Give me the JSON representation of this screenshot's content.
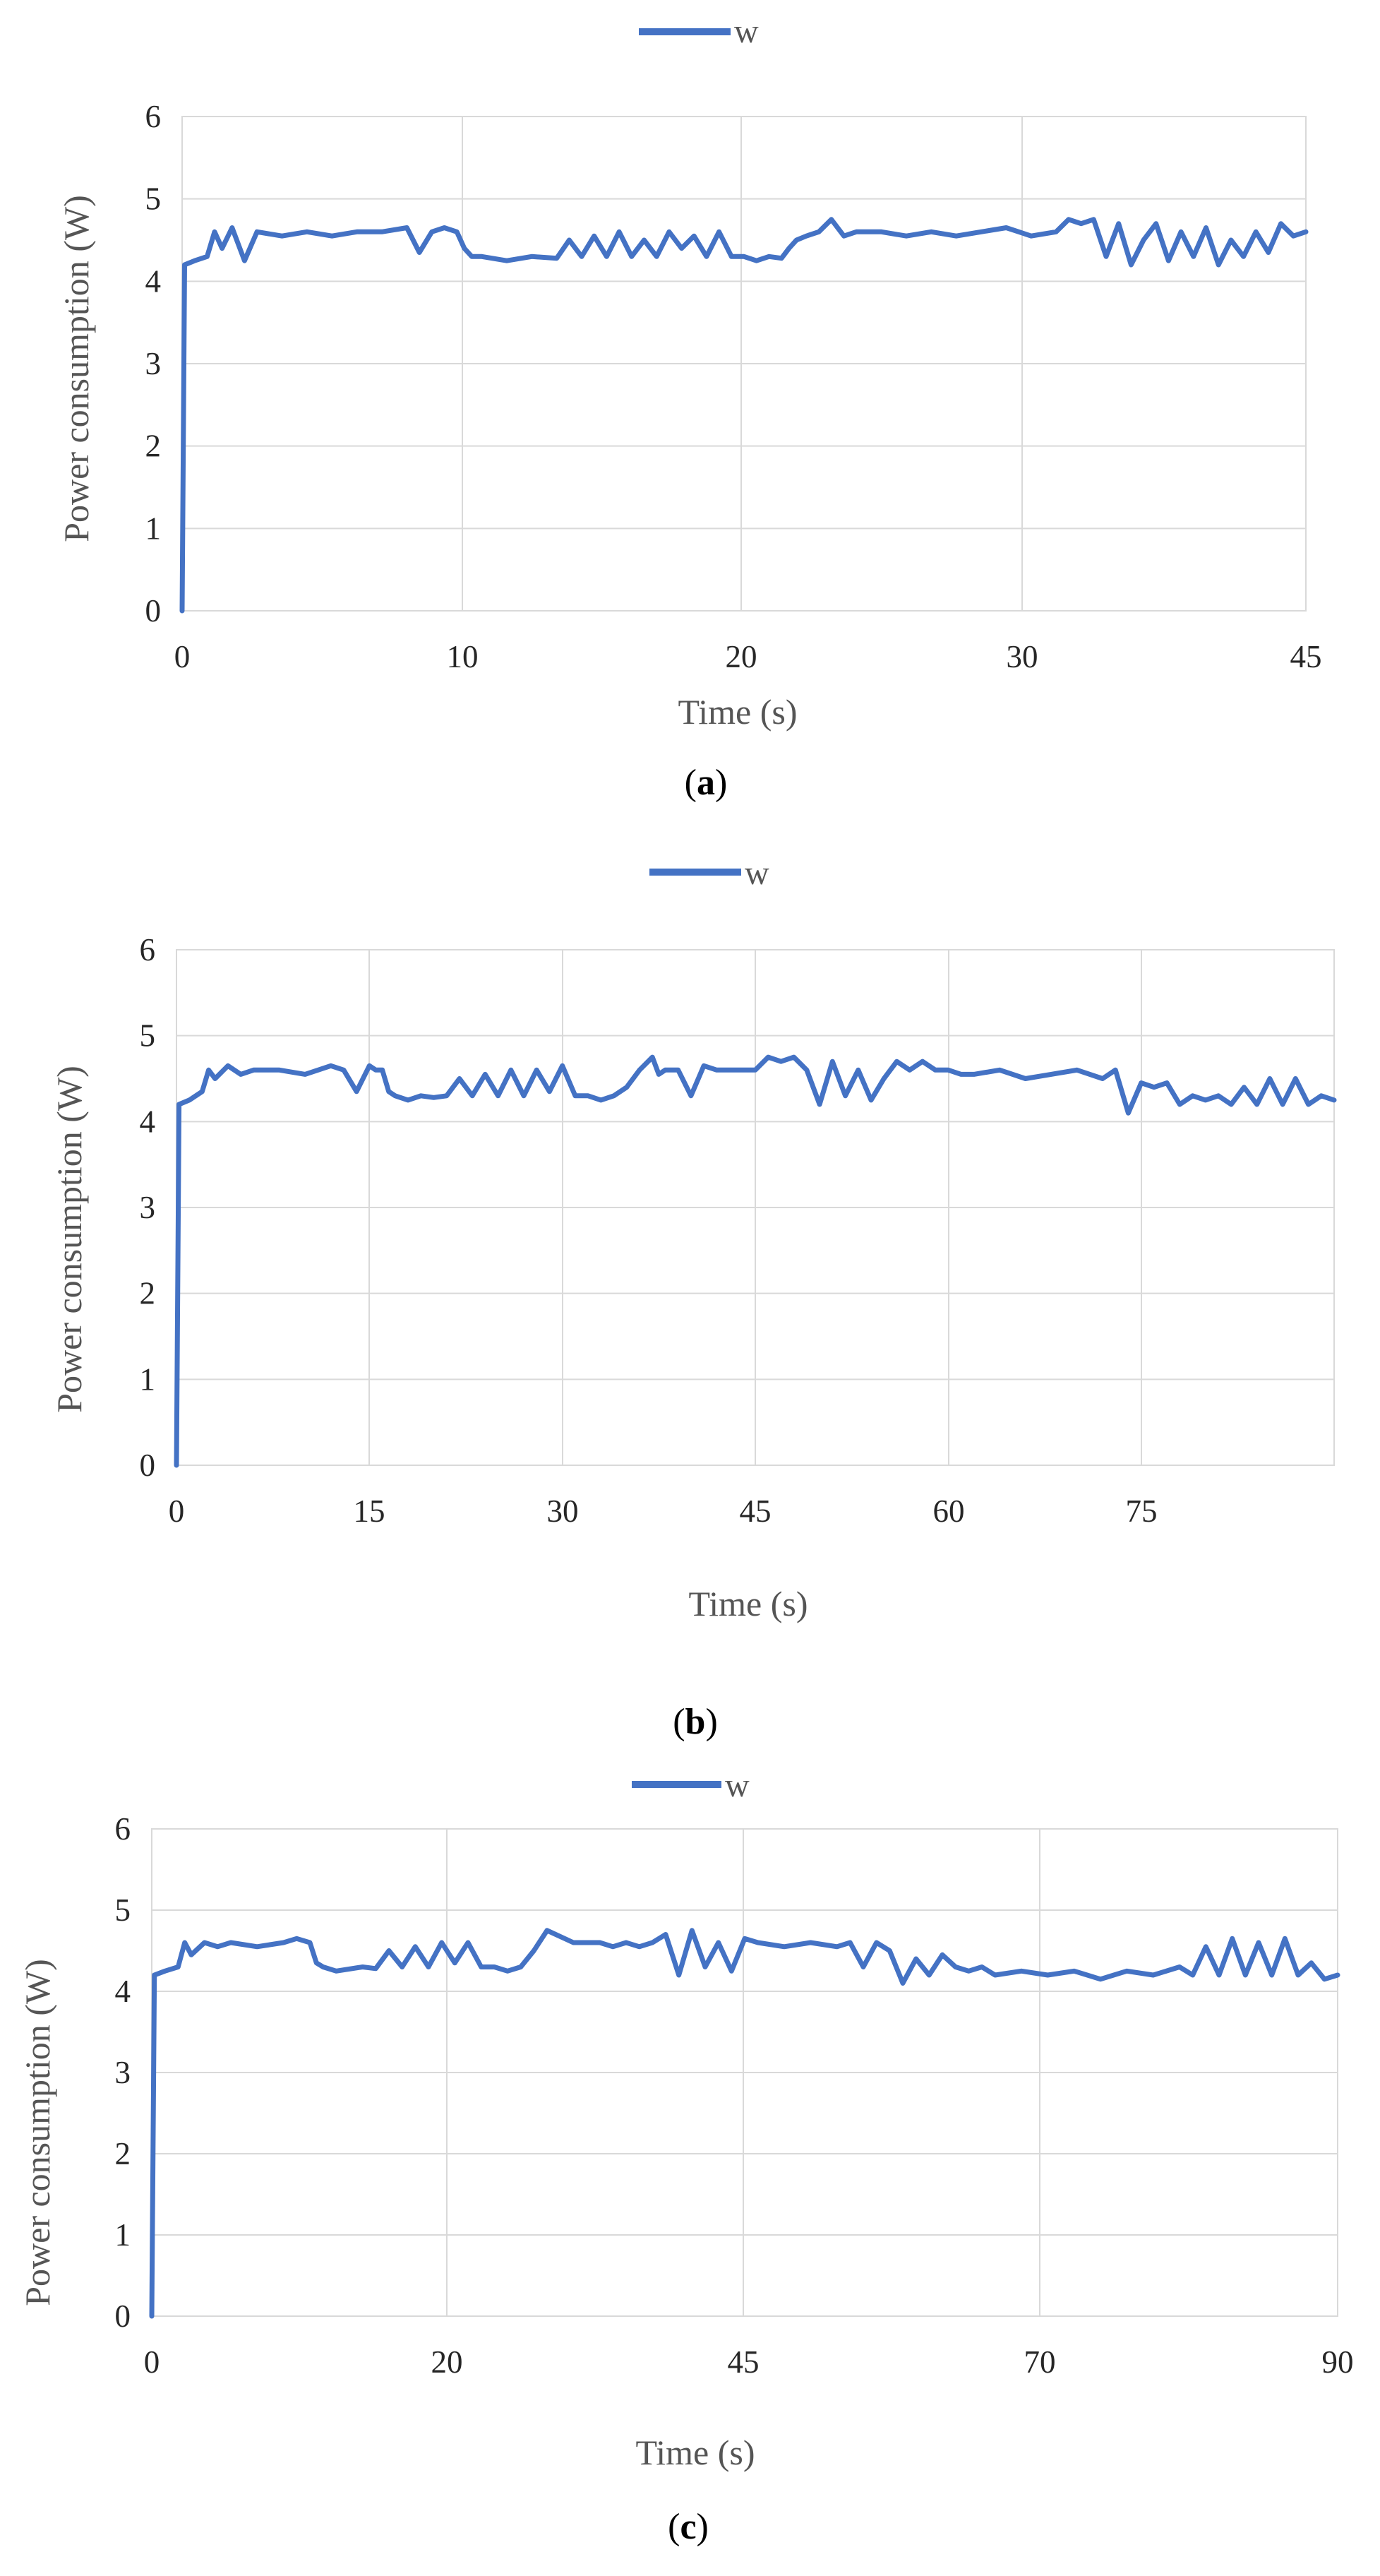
{
  "chart_data": [
    {
      "type": "line",
      "panel": "a",
      "caption_open": "(",
      "caption_letter": "a",
      "caption_close": ")",
      "legend": [
        "w"
      ],
      "xlabel": "Time (s)",
      "ylabel": "Power consumption (W)",
      "ylim": [
        0,
        6
      ],
      "yticks": [
        "0",
        "1",
        "2",
        "3",
        "4",
        "5",
        "6"
      ],
      "xticks": [
        "0",
        "10",
        "20",
        "30",
        "45"
      ],
      "series": [
        {
          "name": "w",
          "color": "#4472C4",
          "x": [
            0,
            0.1,
            0.5,
            1,
            1.3,
            1.6,
            2,
            2.5,
            3,
            4,
            5,
            6,
            7,
            8,
            9,
            9.5,
            10,
            10.5,
            11,
            11.3,
            11.6,
            12,
            13,
            14,
            15,
            15.5,
            16,
            16.5,
            17,
            17.5,
            18,
            18.5,
            19,
            19.5,
            20,
            20.5,
            21,
            21.5,
            22,
            22.5,
            23,
            23.5,
            24,
            24.3,
            24.6,
            25,
            25.5,
            26,
            26.5,
            27,
            28,
            29,
            30,
            31,
            32,
            33,
            33.5,
            34,
            35,
            35.5,
            36,
            36.5,
            37,
            37.5,
            38,
            38.5,
            39,
            39.5,
            40,
            40.5,
            41,
            41.5,
            42,
            42.5,
            43,
            43.5,
            44,
            44.5,
            45
          ],
          "values": [
            0,
            4.2,
            4.25,
            4.3,
            4.6,
            4.4,
            4.65,
            4.25,
            4.6,
            4.55,
            4.6,
            4.55,
            4.6,
            4.6,
            4.65,
            4.35,
            4.6,
            4.65,
            4.6,
            4.4,
            4.3,
            4.3,
            4.25,
            4.3,
            4.28,
            4.5,
            4.3,
            4.55,
            4.3,
            4.6,
            4.3,
            4.5,
            4.3,
            4.6,
            4.4,
            4.55,
            4.3,
            4.6,
            4.3,
            4.3,
            4.25,
            4.3,
            4.28,
            4.4,
            4.5,
            4.55,
            4.6,
            4.75,
            4.55,
            4.6,
            4.6,
            4.55,
            4.6,
            4.55,
            4.6,
            4.65,
            4.6,
            4.55,
            4.6,
            4.75,
            4.7,
            4.75,
            4.3,
            4.7,
            4.2,
            4.5,
            4.7,
            4.25,
            4.6,
            4.3,
            4.65,
            4.2,
            4.5,
            4.3,
            4.6,
            4.35,
            4.7,
            4.55,
            4.6
          ]
        }
      ]
    },
    {
      "type": "line",
      "panel": "b",
      "caption_open": "(",
      "caption_letter": "b",
      "caption_close": ")",
      "legend": [
        "w"
      ],
      "xlabel": "Time (s)",
      "ylabel": "Power consumption (W)",
      "ylim": [
        0,
        6
      ],
      "yticks": [
        "0",
        "1",
        "2",
        "3",
        "4",
        "5",
        "6"
      ],
      "xticks": [
        "0",
        "15",
        "30",
        "45",
        "60",
        "75"
      ],
      "series": [
        {
          "name": "w",
          "color": "#4472C4",
          "x": [
            0,
            0.2,
            1,
            2,
            2.5,
            3,
            4,
            5,
            6,
            8,
            10,
            12,
            13,
            14,
            15,
            15.5,
            16,
            16.5,
            17,
            18,
            19,
            20,
            21,
            22,
            23,
            24,
            25,
            26,
            27,
            28,
            29,
            30,
            31,
            32,
            33,
            34,
            35,
            36,
            37,
            37.5,
            38,
            39,
            40,
            41,
            42,
            43,
            44,
            45,
            46,
            47,
            48,
            49,
            50,
            51,
            52,
            53,
            54,
            55,
            56,
            57,
            58,
            59,
            60,
            61,
            62,
            64,
            66,
            68,
            70,
            72,
            73,
            74,
            75,
            76,
            77,
            78,
            79,
            80,
            81,
            82,
            83,
            84,
            85,
            86,
            87,
            88,
            89,
            90
          ],
          "values": [
            0,
            4.2,
            4.25,
            4.35,
            4.6,
            4.5,
            4.65,
            4.55,
            4.6,
            4.6,
            4.55,
            4.65,
            4.6,
            4.35,
            4.65,
            4.6,
            4.6,
            4.35,
            4.3,
            4.25,
            4.3,
            4.28,
            4.3,
            4.5,
            4.3,
            4.55,
            4.3,
            4.6,
            4.3,
            4.6,
            4.35,
            4.65,
            4.3,
            4.3,
            4.25,
            4.3,
            4.4,
            4.6,
            4.75,
            4.55,
            4.6,
            4.6,
            4.3,
            4.65,
            4.6,
            4.6,
            4.6,
            4.6,
            4.75,
            4.7,
            4.75,
            4.6,
            4.2,
            4.7,
            4.3,
            4.6,
            4.25,
            4.5,
            4.7,
            4.6,
            4.7,
            4.6,
            4.6,
            4.55,
            4.55,
            4.6,
            4.5,
            4.55,
            4.6,
            4.5,
            4.6,
            4.1,
            4.45,
            4.4,
            4.45,
            4.2,
            4.3,
            4.25,
            4.3,
            4.2,
            4.4,
            4.2,
            4.5,
            4.2,
            4.5,
            4.2,
            4.3,
            4.25
          ]
        }
      ]
    },
    {
      "type": "line",
      "panel": "c",
      "caption_open": "(",
      "caption_letter": "c",
      "caption_close": ")",
      "legend": [
        "w"
      ],
      "xlabel": "Time (s)",
      "ylabel": "Power consumption (W)",
      "ylim": [
        0,
        6
      ],
      "yticks": [
        "0",
        "1",
        "2",
        "3",
        "4",
        "5",
        "6"
      ],
      "xticks": [
        "0",
        "20",
        "45",
        "70",
        "90"
      ],
      "series": [
        {
          "name": "w",
          "color": "#4472C4",
          "x": [
            0,
            0.2,
            1,
            2,
            2.5,
            3,
            4,
            5,
            6,
            8,
            10,
            11,
            12,
            12.5,
            13,
            14,
            16,
            17,
            18,
            19,
            20,
            21,
            22,
            23,
            24,
            25,
            26,
            27,
            28,
            29,
            30,
            32,
            34,
            35,
            36,
            37,
            38,
            39,
            40,
            41,
            42,
            43,
            44,
            45,
            46,
            48,
            50,
            52,
            53,
            54,
            55,
            56,
            57,
            58,
            59,
            60,
            61,
            62,
            63,
            64,
            66,
            68,
            70,
            72,
            74,
            76,
            78,
            79,
            80,
            81,
            82,
            83,
            84,
            85,
            86,
            87,
            88,
            89,
            90
          ],
          "values": [
            0,
            4.2,
            4.25,
            4.3,
            4.6,
            4.45,
            4.6,
            4.55,
            4.6,
            4.55,
            4.6,
            4.65,
            4.6,
            4.35,
            4.3,
            4.25,
            4.3,
            4.28,
            4.5,
            4.3,
            4.55,
            4.3,
            4.6,
            4.35,
            4.6,
            4.3,
            4.3,
            4.25,
            4.3,
            4.5,
            4.75,
            4.6,
            4.6,
            4.55,
            4.6,
            4.55,
            4.6,
            4.7,
            4.2,
            4.75,
            4.3,
            4.6,
            4.25,
            4.65,
            4.6,
            4.55,
            4.6,
            4.55,
            4.6,
            4.3,
            4.6,
            4.5,
            4.1,
            4.4,
            4.2,
            4.45,
            4.3,
            4.25,
            4.3,
            4.2,
            4.25,
            4.2,
            4.25,
            4.15,
            4.25,
            4.2,
            4.3,
            4.2,
            4.55,
            4.2,
            4.65,
            4.2,
            4.6,
            4.2,
            4.65,
            4.2,
            4.35,
            4.15,
            4.2
          ]
        }
      ]
    }
  ]
}
